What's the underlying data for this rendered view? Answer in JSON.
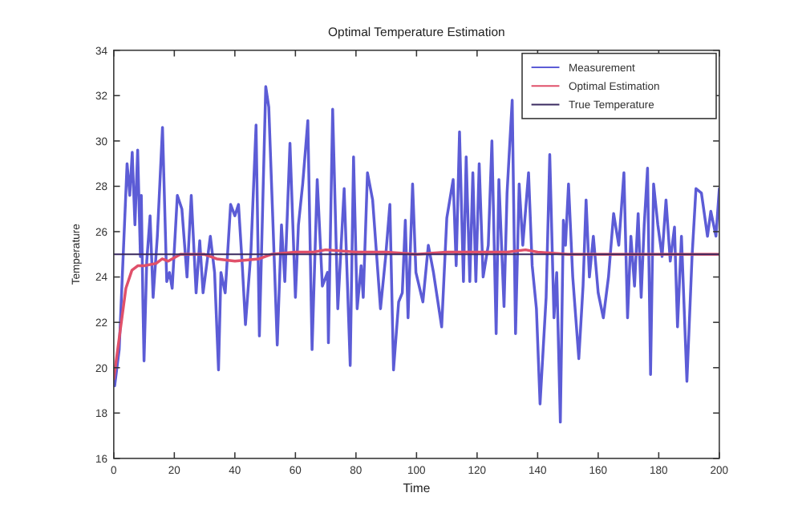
{
  "chart_data": {
    "type": "line",
    "title": "Optimal Temperature Estimation",
    "xlabel": "Time",
    "ylabel": "Temperature",
    "xlim": [
      0,
      200
    ],
    "ylim": [
      16,
      34
    ],
    "xticks": [
      0,
      20,
      40,
      60,
      80,
      100,
      120,
      140,
      160,
      180,
      200
    ],
    "yticks": [
      16,
      18,
      20,
      22,
      24,
      26,
      28,
      30,
      32,
      34
    ],
    "grid": false,
    "legend": "top right",
    "marker": "none",
    "line_style": "solid",
    "series": [
      {
        "name": "Measurement",
        "color": "#5c5cd6",
        "x": [
          0.3,
          1.8,
          4.4,
          5.3,
          6.1,
          7,
          7.9,
          8.8,
          9.1,
          9.6,
          10,
          10.9,
          12,
          13,
          14.4,
          16.1,
          17.5,
          18.4,
          19.3,
          21,
          22.5,
          24.2,
          25.6,
          27.2,
          28.4,
          29.5,
          31.9,
          33.3,
          34.6,
          35.4,
          36.8,
          38.6,
          40,
          41.2,
          42.5,
          43.5,
          45.3,
          47,
          48.1,
          50.2,
          51.2,
          52.6,
          54,
          55.4,
          56.5,
          58.2,
          60,
          61,
          62.4,
          64.1,
          65.5,
          67.2,
          68.9,
          70.6,
          70.9,
          72.3,
          74,
          76.1,
          78.1,
          79.2,
          80.4,
          81.7,
          82.4,
          83.8,
          85.5,
          88.1,
          89.8,
          91.2,
          92.4,
          94.1,
          95.3,
          96.3,
          97.2,
          98.7,
          99.8,
          102.1,
          103.9,
          105.6,
          108.3,
          110,
          112.1,
          113.1,
          114.2,
          115.5,
          116.4,
          117.6,
          118.6,
          119.6,
          120.7,
          122,
          123.7,
          124.9,
          126.3,
          127.2,
          128.9,
          129.9,
          131.6,
          132.7,
          133.9,
          135.1,
          137,
          138.2,
          139.6,
          140.8,
          142.8,
          144,
          145.4,
          146.3,
          147.5,
          148.5,
          149.2,
          150.2,
          151.6,
          153.6,
          155,
          156,
          157.1,
          158.4,
          160,
          161.7,
          163.4,
          165.1,
          166.8,
          168.5,
          169.7,
          170.8,
          172,
          173.2,
          174.2,
          175.2,
          176.3,
          177.3,
          178.3,
          179.7,
          181.1,
          182.4,
          183.8,
          185.2,
          186.2,
          187.5,
          189.3,
          191,
          192.3,
          194.1,
          196.1,
          197.2,
          198.9,
          200
        ],
        "values": [
          19.2,
          20.8,
          29.0,
          27.6,
          29.5,
          26.3,
          29.6,
          24.9,
          27.6,
          23.1,
          20.3,
          24.7,
          26.7,
          23.1,
          25.8,
          30.6,
          23.8,
          24.2,
          23.5,
          27.6,
          27.0,
          24.0,
          27.6,
          23.3,
          25.6,
          23.3,
          25.8,
          24.2,
          19.9,
          24.2,
          23.3,
          27.2,
          26.7,
          27.2,
          24.4,
          21.9,
          25.1,
          30.7,
          21.4,
          32.4,
          31.5,
          26.3,
          21.0,
          26.3,
          23.8,
          29.9,
          23.1,
          26.3,
          28.1,
          30.9,
          20.8,
          28.3,
          23.6,
          24.2,
          21.1,
          31.4,
          22.6,
          27.9,
          20.1,
          29.3,
          22.6,
          24.5,
          23.1,
          28.6,
          27.4,
          22.6,
          24.9,
          27.2,
          19.9,
          22.9,
          23.3,
          26.5,
          22.2,
          28.1,
          24.2,
          22.9,
          25.4,
          24.2,
          21.8,
          26.6,
          28.3,
          24.5,
          30.4,
          23.8,
          29.3,
          23.8,
          28.6,
          23.8,
          29.0,
          24.0,
          25.4,
          30.0,
          21.5,
          28.3,
          22.7,
          27.7,
          31.8,
          21.5,
          28.1,
          25.4,
          28.6,
          24.5,
          22.6,
          18.4,
          23.1,
          29.4,
          22.2,
          24.2,
          17.6,
          26.5,
          25.4,
          28.1,
          24.0,
          20.4,
          23.6,
          27.4,
          24.0,
          25.8,
          23.3,
          22.2,
          24.0,
          26.8,
          25.4,
          28.6,
          22.2,
          25.8,
          23.6,
          26.8,
          23.1,
          26.3,
          28.8,
          19.7,
          28.1,
          26.3,
          24.9,
          27.4,
          24.7,
          26.2,
          21.8,
          25.8,
          19.4,
          24.9,
          27.9,
          27.7,
          25.8,
          26.9,
          25.8,
          27.9
        ]
      },
      {
        "name": "Optimal Estimation",
        "color": "#e0506a",
        "x": [
          0,
          2,
          4,
          6,
          8,
          10,
          14,
          16,
          18,
          22,
          30,
          34,
          40,
          48,
          52,
          60,
          66,
          70,
          80,
          90,
          100,
          110,
          120,
          130,
          136,
          140,
          150,
          170,
          200
        ],
        "values": [
          19.5,
          21.5,
          23.5,
          24.3,
          24.5,
          24.5,
          24.6,
          24.8,
          24.7,
          25.0,
          25.0,
          24.8,
          24.7,
          24.8,
          25.0,
          25.1,
          25.1,
          25.2,
          25.1,
          25.1,
          25.0,
          25.1,
          25.1,
          25.1,
          25.2,
          25.1,
          25.0,
          25.0,
          25.0
        ]
      },
      {
        "name": "True Temperature",
        "color": "#3a2a60",
        "x": [
          0,
          200
        ],
        "values": [
          25,
          25
        ]
      }
    ]
  }
}
